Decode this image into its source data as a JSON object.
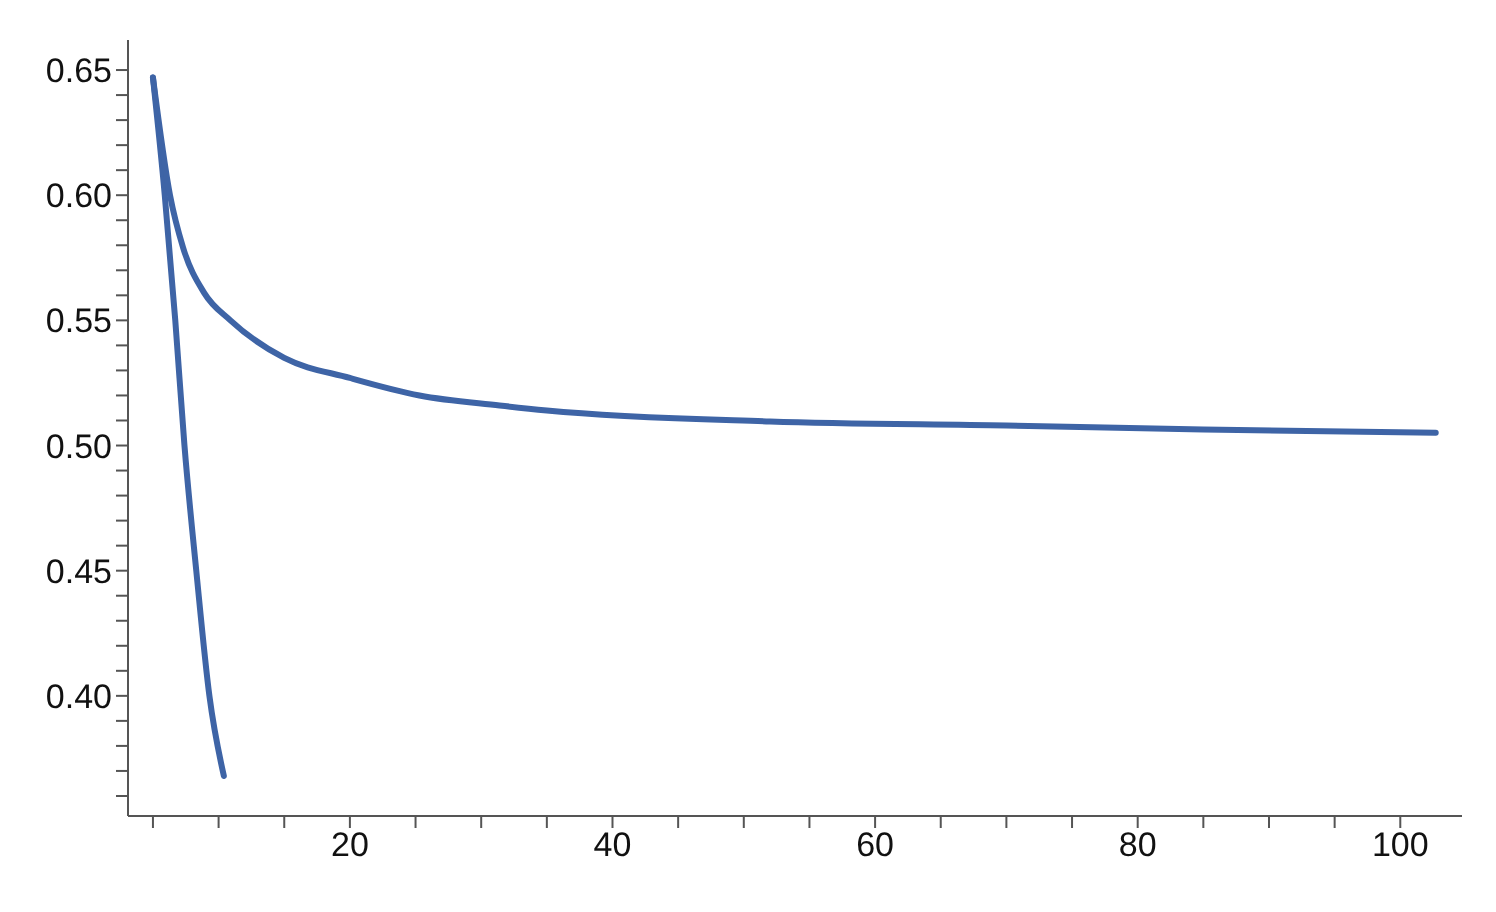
{
  "chart_data": {
    "type": "line",
    "series": [
      {
        "color": "#3e64a6",
        "x": [
          5,
          5.9,
          6.7,
          7.4,
          8.3,
          9.3,
          10.4
        ],
        "values": [
          0.647,
          0.6,
          0.55,
          0.5,
          0.45,
          0.4,
          0.368
        ]
      },
      {
        "color": "#3e64a6",
        "x": [
          5,
          6.3,
          7.3,
          8.9,
          10.9,
          15,
          20,
          25.3,
          31.4,
          35,
          52,
          70,
          85,
          102.7
        ],
        "values": [
          0.647,
          0.6,
          0.579,
          0.561,
          0.55,
          0.535,
          0.527,
          0.52,
          0.516,
          0.514,
          0.5096,
          0.508,
          0.5064,
          0.5051
        ]
      }
    ],
    "xlim": [
      3.1,
      104.7
    ],
    "xticks": [
      {
        "value": 5,
        "label": null
      },
      {
        "value": 10,
        "label": null
      },
      {
        "value": 15,
        "label": null
      },
      20,
      {
        "value": 25,
        "label": null
      },
      {
        "value": 30,
        "label": null
      },
      {
        "value": 35,
        "label": null
      },
      40,
      {
        "value": 45,
        "label": null
      },
      {
        "value": 50,
        "label": null
      },
      {
        "value": 55,
        "label": null
      },
      60,
      {
        "value": 65,
        "label": null
      },
      {
        "value": 70,
        "label": null
      },
      {
        "value": 75,
        "label": null
      },
      80,
      {
        "value": 85,
        "label": null
      },
      {
        "value": 90,
        "label": null
      },
      {
        "value": 95,
        "label": null
      },
      100
    ],
    "ylim": [
      0.352,
      0.662
    ],
    "yticks": [
      {
        "value": 0.36,
        "label": null
      },
      {
        "value": 0.37,
        "label": null
      },
      {
        "value": 0.38,
        "label": null
      },
      {
        "value": 0.39,
        "label": null
      },
      {
        "value": 0.4,
        "label": "0.40"
      },
      {
        "value": 0.41,
        "label": null
      },
      {
        "value": 0.42,
        "label": null
      },
      {
        "value": 0.43,
        "label": null
      },
      {
        "value": 0.44,
        "label": null
      },
      0.45,
      {
        "value": 0.46,
        "label": null
      },
      {
        "value": 0.47,
        "label": null
      },
      {
        "value": 0.48,
        "label": null
      },
      {
        "value": 0.49,
        "label": null
      },
      {
        "value": 0.5,
        "label": "0.50"
      },
      {
        "value": 0.51,
        "label": null
      },
      {
        "value": 0.52,
        "label": null
      },
      {
        "value": 0.53,
        "label": null
      },
      {
        "value": 0.54,
        "label": null
      },
      0.55,
      {
        "value": 0.56,
        "label": null
      },
      {
        "value": 0.57,
        "label": null
      },
      {
        "value": 0.58,
        "label": null
      },
      {
        "value": 0.59,
        "label": null
      },
      {
        "value": 0.6,
        "label": "0.60"
      },
      {
        "value": 0.61,
        "label": null
      },
      {
        "value": 0.62,
        "label": null
      },
      {
        "value": 0.63,
        "label": null
      },
      {
        "value": 0.64,
        "label": null
      },
      0.65
    ],
    "marker": "none",
    "line_style": "solid",
    "grid": false,
    "legend": false
  }
}
